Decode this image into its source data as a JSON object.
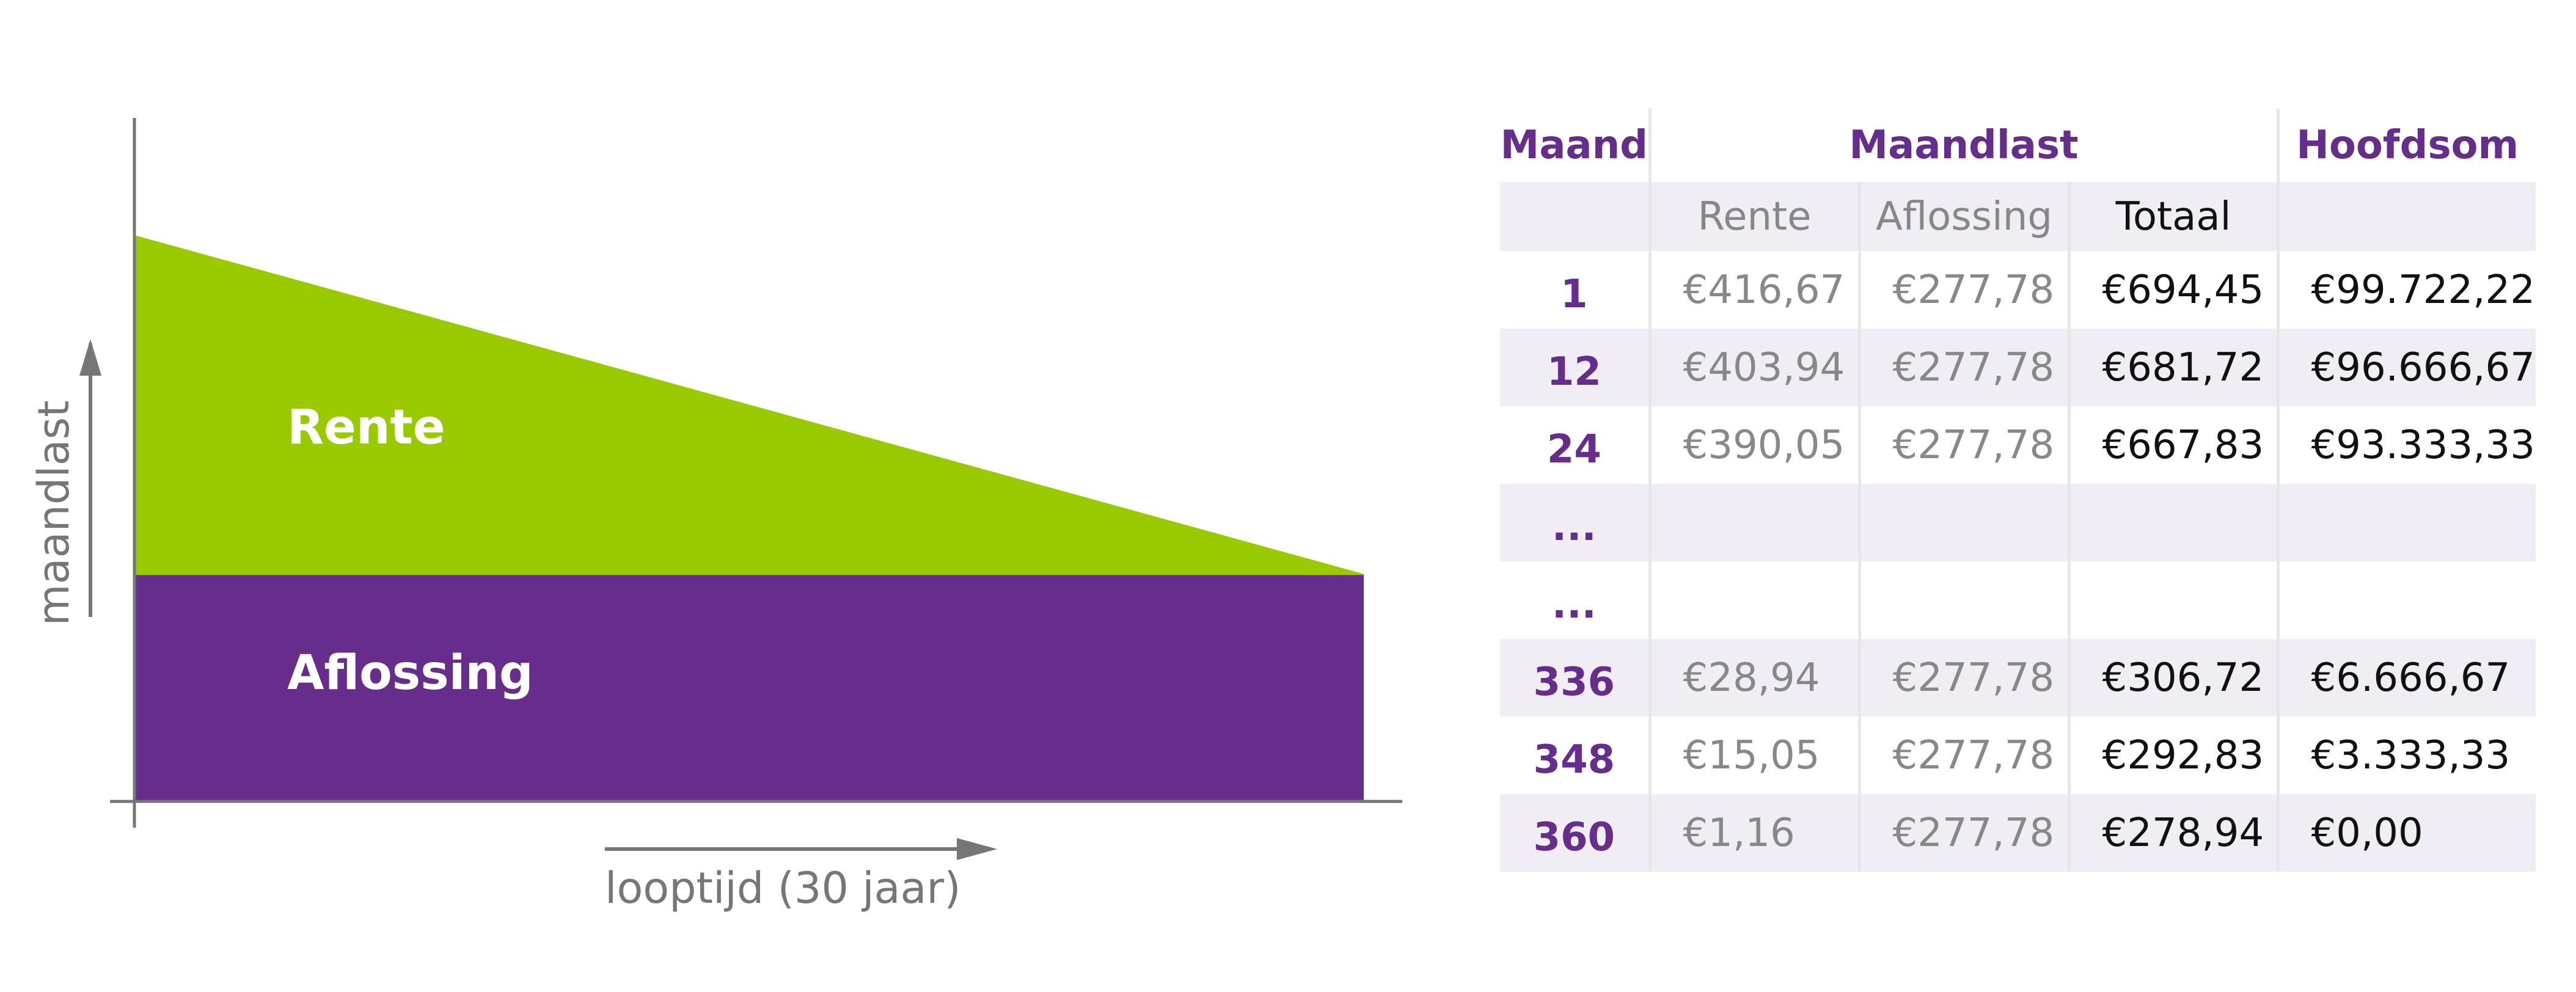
{
  "chart_data": {
    "type": "area",
    "xlabel": "looptijd (30 jaar)",
    "ylabel": "maandlast",
    "series": [
      {
        "name": "Aflossing",
        "values": [
          277.78,
          277.78
        ],
        "x": [
          1,
          360
        ],
        "color": "#662d8c"
      },
      {
        "name": "Rente",
        "values": [
          416.67,
          1.16
        ],
        "x": [
          1,
          360
        ],
        "color": "#99ca00"
      }
    ]
  },
  "table": {
    "headers": {
      "maand": "Maand",
      "maandlast": "Maandlast",
      "hoofdsom": "Hoofdsom"
    },
    "subheaders": {
      "rente": "Rente",
      "aflossing": "Aflossing",
      "totaal": "Totaal"
    },
    "rows": [
      {
        "maand": "1",
        "rente": "€416,67",
        "aflossing": "€277,78",
        "totaal": "€694,45",
        "hoofdsom": "€99.722,22"
      },
      {
        "maand": "12",
        "rente": "€403,94",
        "aflossing": "€277,78",
        "totaal": "€681,72",
        "hoofdsom": "€96.666,67"
      },
      {
        "maand": "24",
        "rente": "€390,05",
        "aflossing": "€277,78",
        "totaal": "€667,83",
        "hoofdsom": "€93.333,33"
      },
      {
        "maand": "...",
        "rente": "",
        "aflossing": "",
        "totaal": "",
        "hoofdsom": ""
      },
      {
        "maand": "...",
        "rente": "",
        "aflossing": "",
        "totaal": "",
        "hoofdsom": ""
      },
      {
        "maand": "336",
        "rente": "€28,94",
        "aflossing": "€277,78",
        "totaal": "€306,72",
        "hoofdsom": "€6.666,67"
      },
      {
        "maand": "348",
        "rente": "€15,05",
        "aflossing": "€277,78",
        "totaal": "€292,83",
        "hoofdsom": "€3.333,33"
      },
      {
        "maand": "360",
        "rente": "€1,16",
        "aflossing": "€277,78",
        "totaal": "€278,94",
        "hoofdsom": "€0,00"
      }
    ]
  },
  "colors": {
    "accent": "#662d8c",
    "rente": "#99ca00",
    "axis": "#767676",
    "band": "#f1edf4"
  }
}
